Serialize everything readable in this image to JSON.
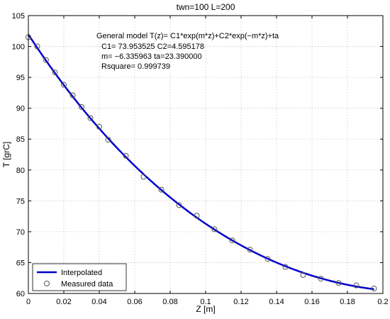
{
  "chart_data": {
    "type": "line",
    "title": "twn=100 L=200",
    "xlabel": "Z [m]",
    "ylabel": "T [grC]",
    "xlim": [
      0,
      0.2
    ],
    "ylim": [
      60,
      105
    ],
    "grid": true,
    "x_ticks": [
      0,
      0.02,
      0.04,
      0.06,
      0.08,
      0.1,
      0.12,
      0.14,
      0.16,
      0.18,
      0.2
    ],
    "x_tick_labels": [
      "0",
      "0.02",
      "0.04",
      "0.06",
      "0.08",
      "0.1",
      "0.12",
      "0.14",
      "0.16",
      "0.18",
      "0.2"
    ],
    "y_ticks": [
      60,
      65,
      70,
      75,
      80,
      85,
      90,
      95,
      100,
      105
    ],
    "y_tick_labels": [
      "60",
      "65",
      "70",
      "75",
      "80",
      "85",
      "90",
      "95",
      "100",
      "105"
    ],
    "annotations": [
      "General model T(z)= C1*exp(m*z)+C2*exp(−m*z)+ta",
      "C1= 73.953525  C2=4.595178",
      "m= −6.335963  ta=23.390000",
      "Rsquare= 0.999739"
    ],
    "legend_position": "bottom-left",
    "series": [
      {
        "name": "Interpolated",
        "style": "line",
        "color": "#0000cc",
        "model": {
          "C1": 73.953525,
          "C2": 4.595178,
          "m": -6.335963,
          "ta": 23.39
        },
        "x_range": [
          0,
          0.195
        ]
      },
      {
        "name": "Measured data",
        "style": "markers",
        "marker": "circle",
        "color": "#555555",
        "x": [
          0,
          0.005,
          0.01,
          0.015,
          0.02,
          0.025,
          0.03,
          0.035,
          0.04,
          0.045,
          0.055,
          0.065,
          0.075,
          0.085,
          0.095,
          0.105,
          0.115,
          0.125,
          0.135,
          0.145,
          0.155,
          0.165,
          0.175,
          0.185,
          0.195
        ],
        "y": [
          101.5,
          100.0,
          97.8,
          95.8,
          93.8,
          92.1,
          90.2,
          88.4,
          87.0,
          84.9,
          82.3,
          78.9,
          76.8,
          74.3,
          72.6,
          70.4,
          68.6,
          67.1,
          65.6,
          64.3,
          63.0,
          62.4,
          61.7,
          61.3,
          60.8
        ]
      }
    ]
  }
}
